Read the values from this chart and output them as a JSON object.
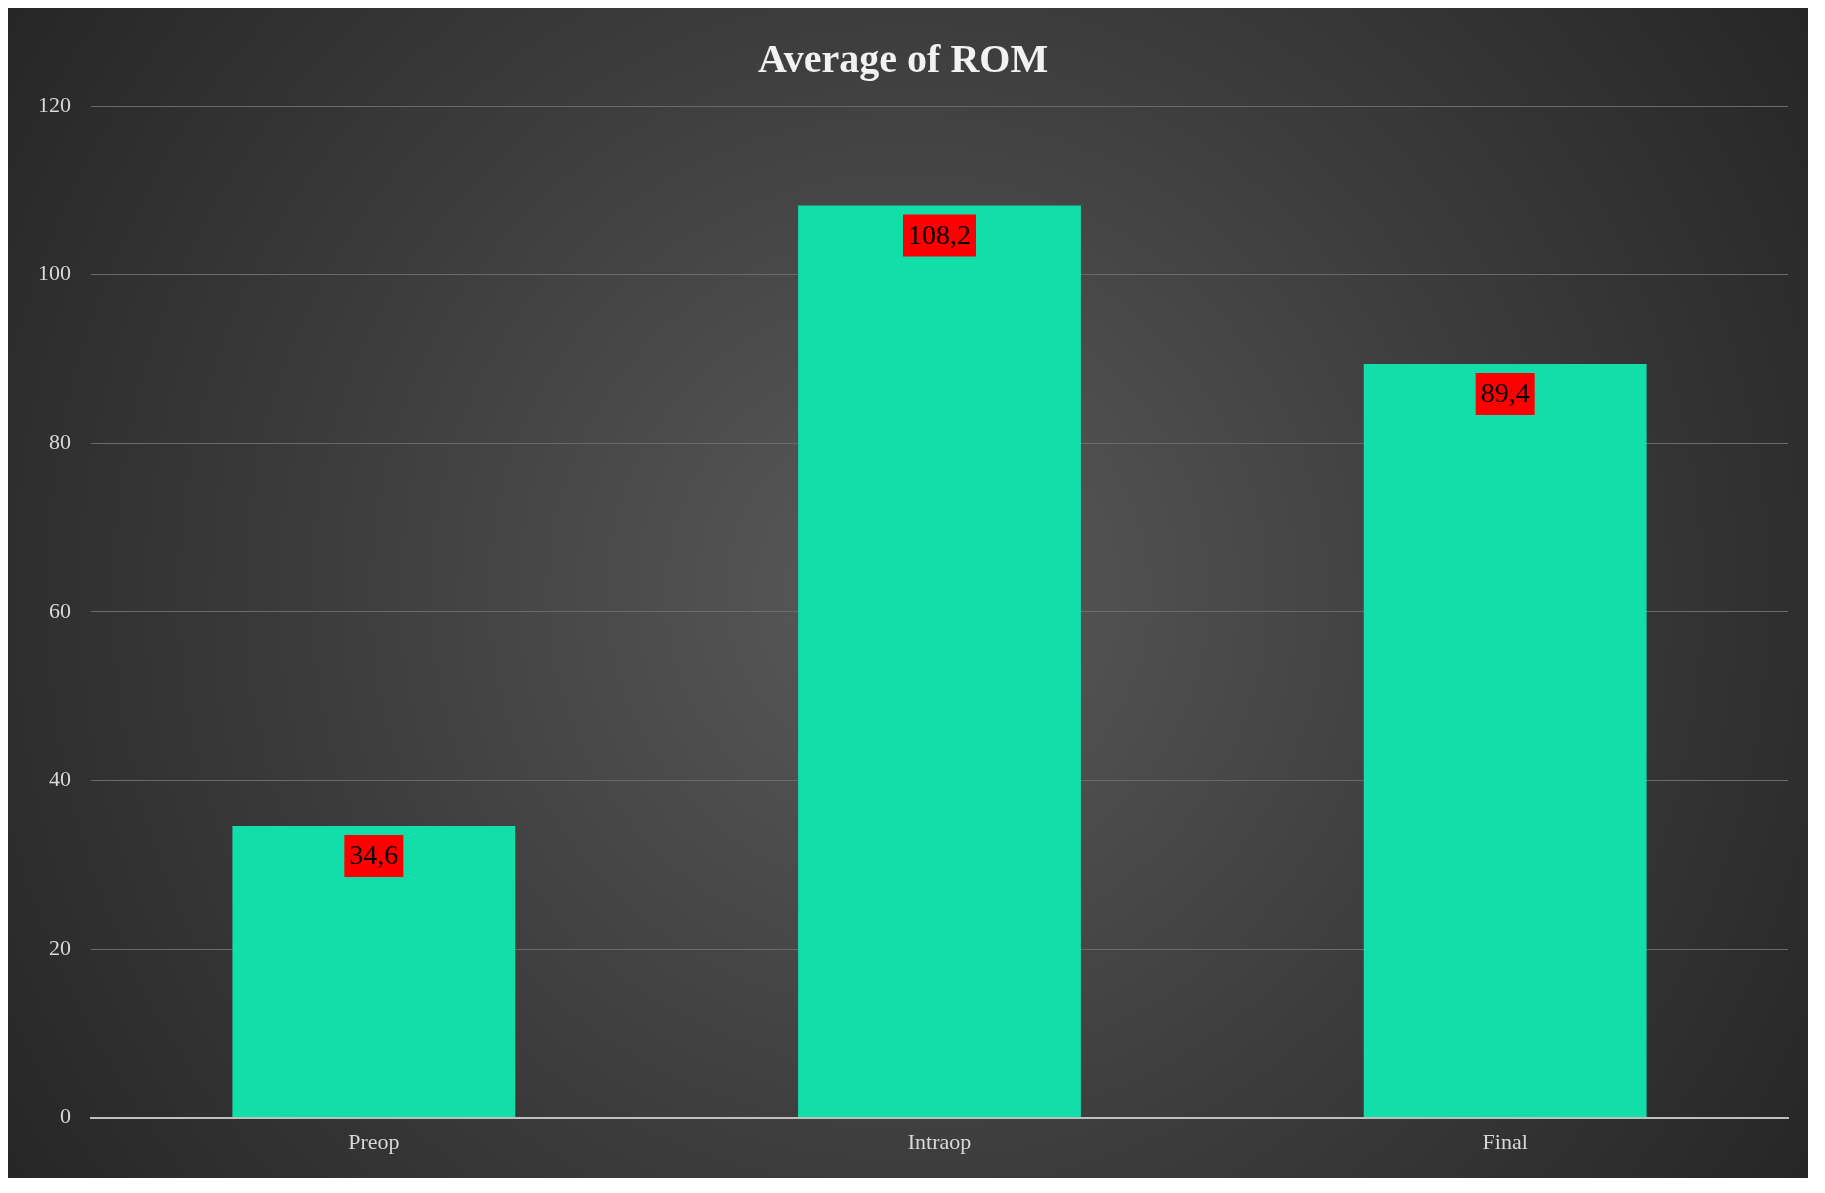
{
  "chart_data": {
    "type": "bar",
    "title": "Average of ROM",
    "categories": [
      "Preop",
      "Intraop",
      "Final"
    ],
    "values": [
      34.6,
      108.2,
      89.4
    ],
    "value_labels": [
      "34,6",
      "108,2",
      "89,4"
    ],
    "color": "#12deaa",
    "ylim": [
      0,
      120
    ],
    "yticks": [
      0,
      20,
      40,
      60,
      80,
      100,
      120
    ],
    "grid": "y",
    "legend": false
  }
}
